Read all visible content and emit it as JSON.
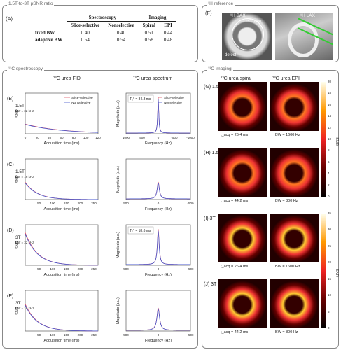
{
  "panel_a": {
    "title": "1.5T-to-3T pSNR ratio",
    "label": "(A)",
    "group_spec": "Spectroscopy",
    "group_img": "Imaging",
    "cols": [
      "Slice-selective",
      "Nonselective",
      "Spiral",
      "EPI"
    ],
    "rows": [
      {
        "name": "fixed BW",
        "values": [
          "0.40",
          "0.40",
          "0.51",
          "0.44"
        ]
      },
      {
        "name": "adaptive BW",
        "values": [
          "0.54",
          "0.54",
          "0.58",
          "0.48"
        ]
      }
    ]
  },
  "panel_f": {
    "title": "¹H reference",
    "label": "(F)",
    "sax": "¹H SAX",
    "lax": "¹H LAX",
    "urea": "¹³C urea",
    "defect": "defect"
  },
  "spectro": {
    "title": "¹³C spectroscopy",
    "fid_title": "¹³C urea FID",
    "spec_title": "¹³C urea spectrum",
    "legend": [
      "Slice-selective",
      "Nonselective"
    ],
    "fid_xlabel": "Acquisition time (ms)",
    "fid_ylabel": "SNR",
    "spec_xlabel": "Frequency (Hz)",
    "spec_ylabel": "Magnitude (a.u.)",
    "rows": [
      {
        "label": "(B)",
        "field": "1.5T",
        "bw": "BW = 32 kHz",
        "t2": "T₂* = 34.8 ms",
        "fid_xticks": [
          "0",
          "20",
          "40",
          "60",
          "80",
          "100",
          "120"
        ],
        "spec_xticks": [
          "1000",
          "500",
          "0",
          "-500",
          "-1000"
        ],
        "fid_tmax": 128,
        "spec_range": 1000,
        "peak": 0.95,
        "decay": 35
      },
      {
        "label": "(C)",
        "field": "1.5T",
        "bw": "BW = 16 kHz",
        "t2": "",
        "fid_xticks": [
          "50",
          "100",
          "150",
          "200",
          "250"
        ],
        "spec_xticks": [
          "500",
          "0",
          "-500"
        ],
        "fid_tmax": 256,
        "spec_range": 500,
        "peak": 0.45,
        "decay": 35
      },
      {
        "label": "(D)",
        "field": "3T",
        "bw": "BW = 32 kHz",
        "t2": "T₂* = 18.6 ms",
        "fid_xticks": [
          "50",
          "100",
          "150",
          "200",
          "250"
        ],
        "spec_xticks": [
          "500",
          "0",
          "-500"
        ],
        "fid_tmax": 256,
        "spec_range": 500,
        "peak": 0.95,
        "decay": 19
      },
      {
        "label": "(E)",
        "field": "3T",
        "bw": "BW = 16 kHz",
        "t2": "",
        "fid_xticks": [
          "50",
          "100",
          "150",
          "200",
          "250"
        ],
        "spec_xticks": [
          "500",
          "0",
          "-500"
        ],
        "fid_tmax": 256,
        "spec_range": 500,
        "peak": 0.6,
        "decay": 19
      }
    ]
  },
  "imaging": {
    "title": "¹³C imaging",
    "spiral_title": "¹³C urea spiral",
    "epi_title": "¹³C urea EPI",
    "cbar_label": "SNR",
    "cbar1_ticks": [
      "20",
      "18",
      "16",
      "14",
      "12",
      "10",
      "8",
      "6",
      "4",
      "2",
      "0"
    ],
    "cbar2_ticks": [
      "35",
      "30",
      "25",
      "20",
      "15",
      "10",
      "5",
      "0"
    ],
    "rows": [
      {
        "label": "(G)",
        "field": "1.5T",
        "tacq": "t_acq = 26.4 ms",
        "bw": "BW = 1600 Hz"
      },
      {
        "label": "(H)",
        "field": "1.5T",
        "tacq": "t_acq = 44.2 ms",
        "bw": "BW = 800 Hz"
      },
      {
        "label": "(I)",
        "field": "3T",
        "tacq": "t_acq = 26.4 ms",
        "bw": "BW = 1600 Hz"
      },
      {
        "label": "(J)",
        "field": "3T",
        "tacq": "t_acq = 44.2 ms",
        "bw": "BW = 800 Hz"
      }
    ]
  },
  "colors": {
    "slice_selective": "#e05a6a",
    "nonselective": "#4455cc"
  }
}
